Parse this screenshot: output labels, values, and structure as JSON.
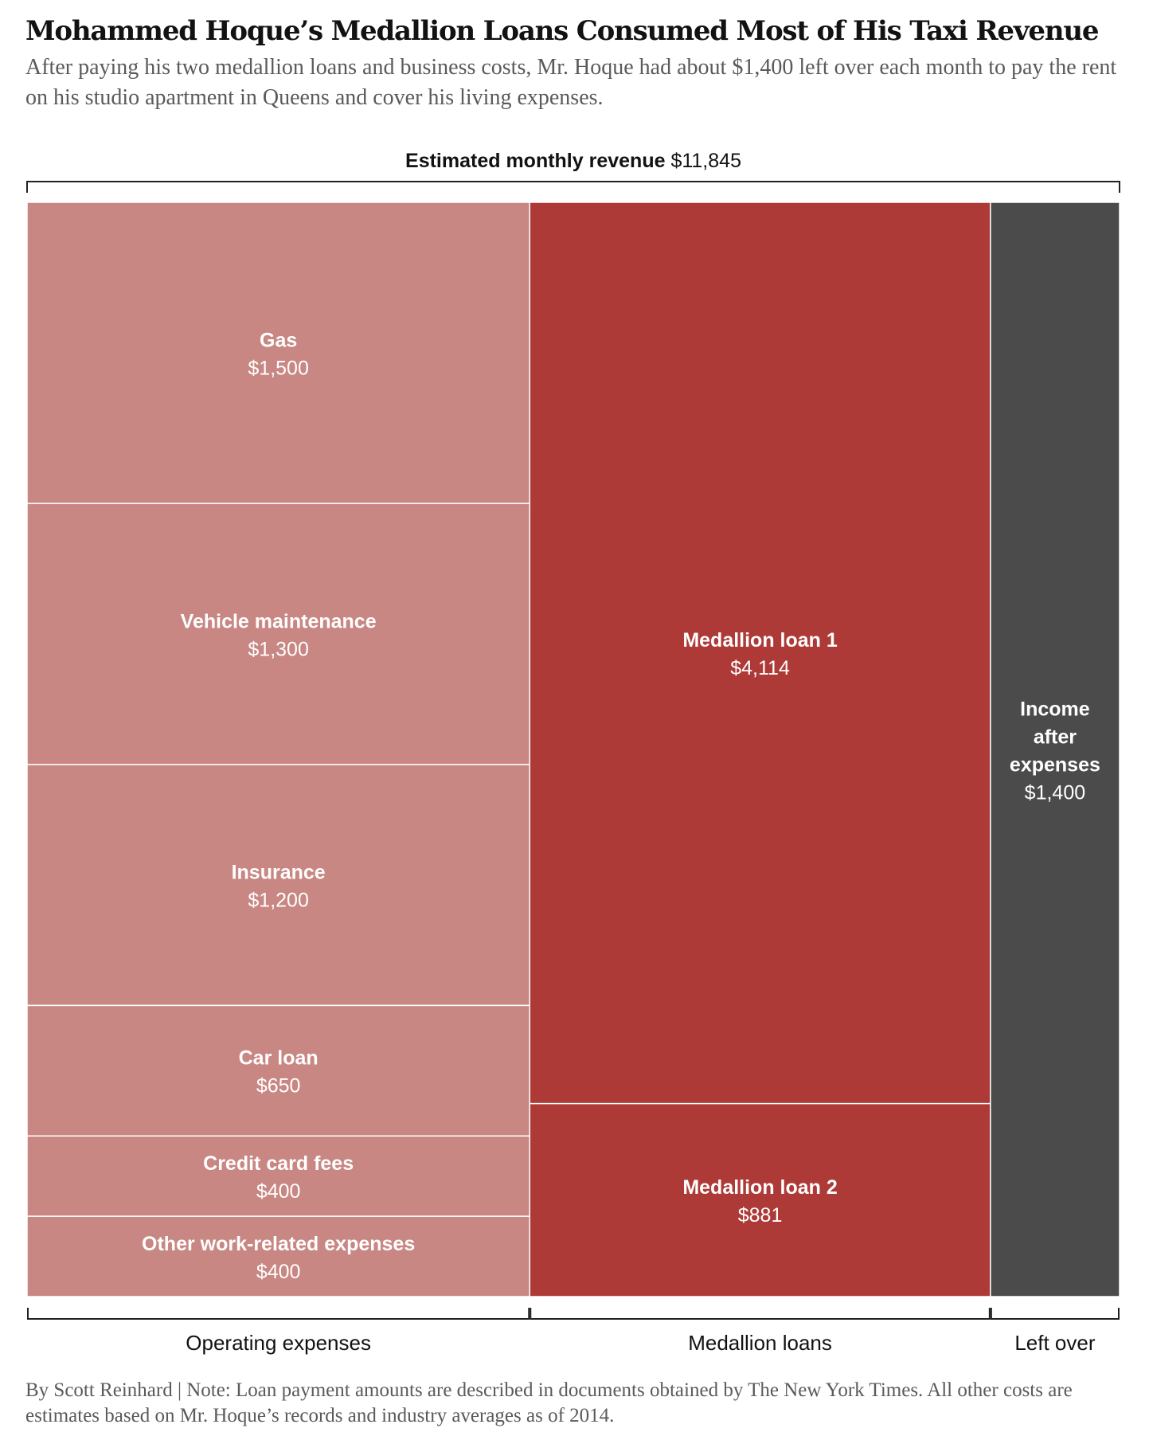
{
  "title": "Mohammed Hoque’s Medallion Loans Consumed Most of His Taxi Revenue",
  "subtitle": "After paying his two medallion loans and business costs, Mr. Hoque had about $1,400 left over each month to pay the rent on his studio apartment in Queens and cover his living expenses.",
  "revenue": {
    "label": "Estimated monthly revenue",
    "value": "$11,845"
  },
  "footnote": "By Scott Reinhard | Note: Loan payment amounts are described in documents obtained by The New York Times. All other costs are estimates based on Mr. Hoque’s records and industry averages as of 2014.",
  "chart_data": {
    "type": "mosaic",
    "total": 11845,
    "groups": [
      {
        "name": "Operating expenses",
        "color": "#c88783",
        "items": [
          {
            "label": "Gas",
            "value": 1500,
            "display": "$1,500"
          },
          {
            "label": "Vehicle maintenance",
            "value": 1300,
            "display": "$1,300"
          },
          {
            "label": "Insurance",
            "value": 1200,
            "display": "$1,200"
          },
          {
            "label": "Car loan",
            "value": 650,
            "display": "$650"
          },
          {
            "label": "Credit card fees",
            "value": 400,
            "display": "$400"
          },
          {
            "label": "Other work-related expenses",
            "value": 400,
            "display": "$400"
          }
        ]
      },
      {
        "name": "Medallion loans",
        "color": "#ae3a37",
        "items": [
          {
            "label": "Medallion loan 1",
            "value": 4114,
            "display": "$4,114"
          },
          {
            "label": "Medallion loan 2",
            "value": 881,
            "display": "$881"
          }
        ]
      },
      {
        "name": "Left over",
        "color": "#4b4b4b",
        "items": [
          {
            "label": "Income after expenses",
            "value": 1400,
            "display": "$1,400"
          }
        ]
      }
    ]
  }
}
